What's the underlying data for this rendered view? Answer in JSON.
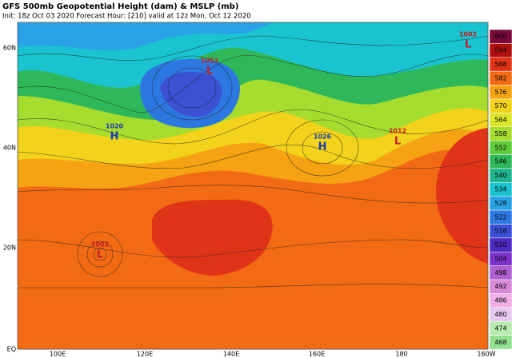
{
  "header": {
    "title": "GFS 500mb Geopotential Height (dam) & MSLP (mb)",
    "subtitle": "Init: 18z Oct 03 2020   Forecast Hour: [210]   valid at 12z Mon, Oct 12 2020"
  },
  "lat_labels": [
    "60N",
    "40N",
    "20N",
    "EQ"
  ],
  "lon_labels": [
    "100E",
    "120E",
    "140E",
    "160E",
    "180",
    "160W"
  ],
  "colorbar": [
    {
      "label": "600",
      "color": "#7a0a3a"
    },
    {
      "label": "594",
      "color": "#b01010"
    },
    {
      "label": "588",
      "color": "#e03418"
    },
    {
      "label": "582",
      "color": "#f26a14"
    },
    {
      "label": "576",
      "color": "#f5a312"
    },
    {
      "label": "570",
      "color": "#f2d21a"
    },
    {
      "label": "564",
      "color": "#d9e62a"
    },
    {
      "label": "558",
      "color": "#a6dc2e"
    },
    {
      "label": "552",
      "color": "#5fca3a"
    },
    {
      "label": "546",
      "color": "#2fb85a"
    },
    {
      "label": "540",
      "color": "#1fb48f"
    },
    {
      "label": "534",
      "color": "#19c3cf"
    },
    {
      "label": "528",
      "color": "#2aa2e6"
    },
    {
      "label": "522",
      "color": "#2d78e0"
    },
    {
      "label": "516",
      "color": "#3b50d2"
    },
    {
      "label": "510",
      "color": "#4d2bc0"
    },
    {
      "label": "504",
      "color": "#7c32c8"
    },
    {
      "label": "498",
      "color": "#b060d0"
    },
    {
      "label": "492",
      "color": "#d78ad8"
    },
    {
      "label": "486",
      "color": "#f0b0e6"
    },
    {
      "label": "480",
      "color": "#e6c8f0"
    },
    {
      "label": "474",
      "color": "#b8ecb0"
    },
    {
      "label": "468",
      "color": "#90e090"
    }
  ],
  "systems": [
    {
      "type": "H",
      "label": "1026",
      "color": "#1c3aa8"
    },
    {
      "type": "H",
      "label": "1020",
      "color": "#1c3aa8"
    },
    {
      "type": "L",
      "label": "1012",
      "color": "#c0202a"
    },
    {
      "type": "L",
      "label": "1002",
      "color": "#c0202a"
    },
    {
      "type": "L",
      "label": "1012",
      "color": "#c0202a"
    },
    {
      "type": "L",
      "label": "1002",
      "color": "#c0202a"
    }
  ]
}
